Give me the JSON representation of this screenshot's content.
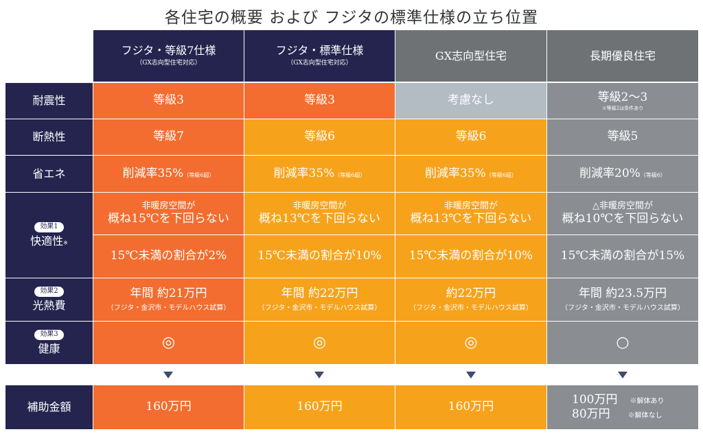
{
  "title": "各住宅の概要 および フジタの標準仕様の立ち位置",
  "columns": [
    {
      "name": "フジタ・等級7仕様",
      "sub": "（GX志向型住宅対応）"
    },
    {
      "name": "フジタ・標準仕様",
      "sub": "（GX志向型住宅対応）"
    },
    {
      "name": "GX志向型住宅",
      "sub": ""
    },
    {
      "name": "長期優良住宅",
      "sub": ""
    }
  ],
  "rows": {
    "seismic": {
      "label": "耐震性",
      "values": [
        "等級3",
        "等級3",
        "考慮なし",
        "等級2〜3"
      ],
      "note4": "※等級2は条件あり"
    },
    "insulation": {
      "label": "断熱性",
      "values": [
        "等級7",
        "等級6",
        "等級6",
        "等級5"
      ]
    },
    "energy": {
      "label": "省エネ",
      "values": [
        {
          "main": "削減率35%",
          "sub": "（等級6超）"
        },
        {
          "main": "削減率35%",
          "sub": "（等級6超）"
        },
        {
          "main": "削減率35%",
          "sub": "（等級6超）"
        },
        {
          "main": "削減率20%",
          "sub": "（等級6）"
        }
      ]
    },
    "comfort": {
      "badge": "効果1",
      "label": "快適性",
      "mark": "※",
      "top": [
        {
          "line1": "非暖房空間が",
          "line2": "概ね15℃を下回らない"
        },
        {
          "line1": "非暖房空間が",
          "line2": "概ね13℃を下回らない"
        },
        {
          "line1": "非暖房空間が",
          "line2": "概ね13℃を下回らない"
        },
        {
          "line1": "△非暖房空間が",
          "line2": "概ね10℃を下回らない"
        }
      ],
      "bottom": [
        "15℃未満の割合が2%",
        "15℃未満の割合が10%",
        "15℃未満の割合が10%",
        "15℃未満の割合が15%"
      ]
    },
    "utility": {
      "badge": "効果2",
      "label": "光熱費",
      "values": [
        {
          "main": "年間 約21万円",
          "sub": "（フジタ・金沢市・モデルハウス試算）"
        },
        {
          "main": "年間 約22万円",
          "sub": "（フジタ・金沢市・モデルハウス試算）"
        },
        {
          "main": "約22万円",
          "sub": "（フジタ・金沢市・モデルハウス試算）"
        },
        {
          "main": "年間 約23.5万円",
          "sub": "（フジタ・金沢市・モデルハウス試算）"
        }
      ]
    },
    "health": {
      "badge": "効果3",
      "label": "健康",
      "values": [
        "◎",
        "◎",
        "◎",
        "○"
      ]
    },
    "subsidy": {
      "label": "補助金額",
      "values": [
        "160万円",
        "160万円",
        "160万円"
      ],
      "col4": [
        {
          "amount": "100万円",
          "note": "※解体あり"
        },
        {
          "amount": "80万円",
          "note": "※解体なし"
        }
      ]
    }
  }
}
